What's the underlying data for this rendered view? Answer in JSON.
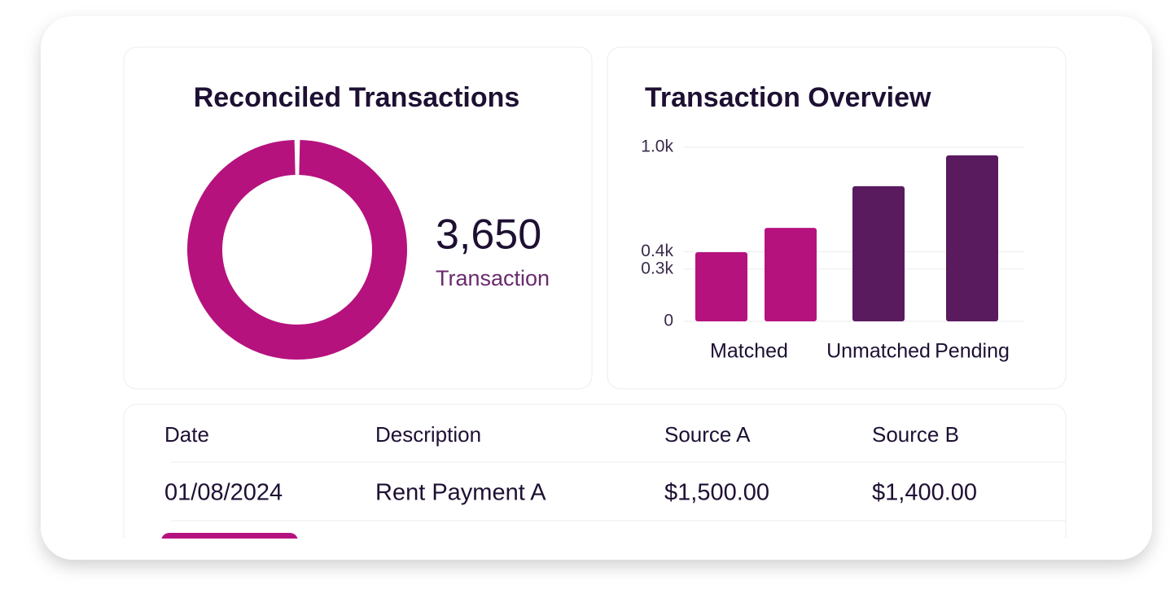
{
  "donut": {
    "chart_data": {
      "type": "pie",
      "title": "Reconciled Transactions",
      "values": [
        100
      ],
      "color": "#b5127e",
      "center_label": "3,650",
      "center_sublabel": "Transaction"
    }
  },
  "bars": {
    "chart_data": {
      "type": "bar",
      "title": "Transaction Overview",
      "categories": [
        "Matched",
        null,
        "Unmatched",
        "Pending"
      ],
      "values": [
        397,
        537,
        776,
        953
      ],
      "colors": [
        "#b5127e",
        "#b5127e",
        "#5a1a5e",
        "#5a1a5e"
      ],
      "ylim": [
        0,
        1000
      ],
      "yticks": [
        0,
        {
          "value": 400,
          "label": "0.4k"
        },
        {
          "value": 300,
          "label": "0.3k"
        },
        {
          "value": 1000,
          "label": "1.0k"
        }
      ],
      "grid": true
    }
  },
  "table": {
    "headers": [
      "Date",
      "Description",
      "Source A",
      "Source B"
    ],
    "rows": [
      [
        "01/08/2024",
        "Rent Payment A",
        "$1,500.00",
        "$1,400.00"
      ]
    ]
  }
}
